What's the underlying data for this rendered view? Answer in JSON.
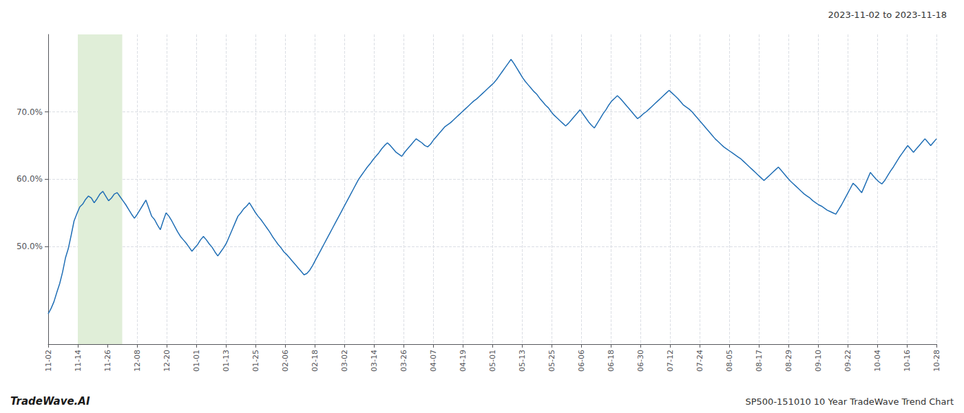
{
  "chart_data": {
    "type": "line",
    "title": "2023-11-02 to 2023-11-18",
    "annotations": [
      "TradeWave.AI",
      "SP500-151010 10 Year TradeWave Trend Chart"
    ],
    "color": "#1f6eb5",
    "grid": true,
    "xlim": [
      0,
      30
    ],
    "xticks": [
      {
        "value": 0,
        "label": "11-02"
      },
      {
        "value": 1,
        "label": "11-14"
      },
      {
        "value": 2,
        "label": "11-26"
      },
      {
        "value": 3,
        "label": "12-08"
      },
      {
        "value": 4,
        "label": "12-20"
      },
      {
        "value": 5,
        "label": "01-01"
      },
      {
        "value": 6,
        "label": "01-13"
      },
      {
        "value": 7,
        "label": "01-25"
      },
      {
        "value": 8,
        "label": "02-06"
      },
      {
        "value": 9,
        "label": "02-18"
      },
      {
        "value": 10,
        "label": "03-02"
      },
      {
        "value": 11,
        "label": "03-14"
      },
      {
        "value": 12,
        "label": "03-26"
      },
      {
        "value": 13,
        "label": "04-07"
      },
      {
        "value": 14,
        "label": "04-19"
      },
      {
        "value": 15,
        "label": "05-01"
      },
      {
        "value": 16,
        "label": "05-13"
      },
      {
        "value": 17,
        "label": "05-25"
      },
      {
        "value": 18,
        "label": "06-06"
      },
      {
        "value": 19,
        "label": "06-18"
      },
      {
        "value": 20,
        "label": "06-30"
      },
      {
        "value": 21,
        "label": "07-12"
      },
      {
        "value": 22,
        "label": "07-24"
      },
      {
        "value": 23,
        "label": "08-05"
      },
      {
        "value": 24,
        "label": "08-17"
      },
      {
        "value": 25,
        "label": "08-29"
      },
      {
        "value": 26,
        "label": "09-10"
      },
      {
        "value": 27,
        "label": "09-22"
      },
      {
        "value": 28,
        "label": "10-04"
      },
      {
        "value": 29,
        "label": "10-16"
      },
      {
        "value": 30,
        "label": "10-28"
      }
    ],
    "ylim": [
      0.355,
      0.815
    ],
    "yticks": [
      {
        "value": 0.5,
        "label": "50.0%"
      },
      {
        "value": 0.6,
        "label": "60.0%"
      },
      {
        "value": 0.7,
        "label": "70.0%"
      }
    ],
    "span": {
      "start": 1,
      "end": 2.5,
      "color": "#e0eed8"
    },
    "values": [
      0.4,
      0.408,
      0.418,
      0.432,
      0.445,
      0.462,
      0.483,
      0.497,
      0.517,
      0.538,
      0.549,
      0.559,
      0.563,
      0.57,
      0.575,
      0.572,
      0.565,
      0.571,
      0.578,
      0.582,
      0.575,
      0.568,
      0.572,
      0.578,
      0.58,
      0.574,
      0.568,
      0.562,
      0.555,
      0.548,
      0.542,
      0.548,
      0.555,
      0.562,
      0.569,
      0.557,
      0.545,
      0.54,
      0.532,
      0.525,
      0.538,
      0.55,
      0.545,
      0.538,
      0.53,
      0.522,
      0.515,
      0.51,
      0.505,
      0.499,
      0.493,
      0.498,
      0.503,
      0.51,
      0.515,
      0.51,
      0.504,
      0.499,
      0.492,
      0.486,
      0.492,
      0.498,
      0.505,
      0.515,
      0.525,
      0.535,
      0.545,
      0.55,
      0.556,
      0.56,
      0.565,
      0.558,
      0.551,
      0.545,
      0.54,
      0.534,
      0.528,
      0.522,
      0.515,
      0.509,
      0.503,
      0.498,
      0.492,
      0.488,
      0.483,
      0.478,
      0.473,
      0.468,
      0.463,
      0.458,
      0.46,
      0.465,
      0.472,
      0.48,
      0.488,
      0.496,
      0.504,
      0.512,
      0.52,
      0.528,
      0.536,
      0.544,
      0.552,
      0.56,
      0.568,
      0.576,
      0.584,
      0.592,
      0.6,
      0.606,
      0.612,
      0.618,
      0.623,
      0.629,
      0.634,
      0.639,
      0.645,
      0.65,
      0.654,
      0.65,
      0.645,
      0.64,
      0.637,
      0.634,
      0.64,
      0.645,
      0.65,
      0.655,
      0.66,
      0.657,
      0.654,
      0.65,
      0.648,
      0.652,
      0.658,
      0.663,
      0.668,
      0.673,
      0.678,
      0.681,
      0.684,
      0.688,
      0.692,
      0.696,
      0.7,
      0.704,
      0.708,
      0.712,
      0.716,
      0.719,
      0.723,
      0.727,
      0.731,
      0.735,
      0.739,
      0.743,
      0.748,
      0.754,
      0.76,
      0.766,
      0.772,
      0.778,
      0.772,
      0.765,
      0.758,
      0.751,
      0.745,
      0.74,
      0.735,
      0.73,
      0.726,
      0.72,
      0.715,
      0.71,
      0.706,
      0.7,
      0.695,
      0.691,
      0.687,
      0.683,
      0.679,
      0.683,
      0.688,
      0.693,
      0.698,
      0.703,
      0.697,
      0.691,
      0.685,
      0.68,
      0.676,
      0.683,
      0.69,
      0.697,
      0.703,
      0.71,
      0.716,
      0.72,
      0.724,
      0.72,
      0.715,
      0.71,
      0.705,
      0.7,
      0.695,
      0.69,
      0.693,
      0.697,
      0.7,
      0.704,
      0.708,
      0.712,
      0.716,
      0.72,
      0.724,
      0.728,
      0.732,
      0.728,
      0.724,
      0.72,
      0.715,
      0.71,
      0.707,
      0.704,
      0.7,
      0.695,
      0.69,
      0.685,
      0.68,
      0.675,
      0.67,
      0.665,
      0.66,
      0.656,
      0.652,
      0.648,
      0.645,
      0.642,
      0.639,
      0.636,
      0.633,
      0.63,
      0.626,
      0.622,
      0.618,
      0.614,
      0.61,
      0.606,
      0.602,
      0.598,
      0.602,
      0.606,
      0.61,
      0.614,
      0.618,
      0.613,
      0.608,
      0.603,
      0.598,
      0.594,
      0.59,
      0.586,
      0.582,
      0.578,
      0.575,
      0.572,
      0.568,
      0.565,
      0.562,
      0.56,
      0.557,
      0.554,
      0.552,
      0.55,
      0.548,
      0.555,
      0.562,
      0.57,
      0.578,
      0.586,
      0.594,
      0.59,
      0.585,
      0.58,
      0.59,
      0.6,
      0.61,
      0.605,
      0.6,
      0.596,
      0.593,
      0.598,
      0.605,
      0.612,
      0.618,
      0.625,
      0.632,
      0.638,
      0.644,
      0.65,
      0.645,
      0.64,
      0.645,
      0.65,
      0.655,
      0.66,
      0.655,
      0.65,
      0.655,
      0.66
    ]
  }
}
